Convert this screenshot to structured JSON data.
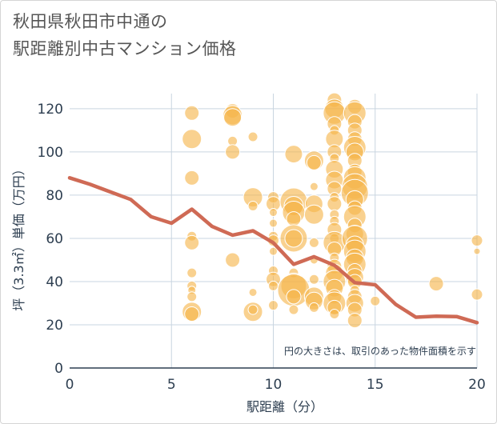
{
  "chart_data": {
    "type": "scatter",
    "title_lines": [
      "秋田県秋田市中通の",
      "駅距離別中古マンション価格"
    ],
    "xlabel": "駅距離（分）",
    "ylabel": "坪（3.3㎡）単価（万円）",
    "xlim": [
      0,
      20
    ],
    "ylim": [
      0,
      127
    ],
    "xticks": [
      0,
      5,
      10,
      15,
      20
    ],
    "yticks": [
      0,
      20,
      40,
      60,
      80,
      100,
      120
    ],
    "grid": true,
    "annotation": "円の大きさは、取引のあった物件面積を示す",
    "colors": {
      "bubble": "#f5b54b",
      "line": "#cf6a55",
      "grid": "#c9d5e0",
      "axis": "#2d3e50"
    },
    "points": [
      {
        "x": 6,
        "y": 118,
        "s": 9
      },
      {
        "x": 6,
        "y": 106,
        "s": 12
      },
      {
        "x": 6,
        "y": 88,
        "s": 9
      },
      {
        "x": 6,
        "y": 61,
        "s": 6
      },
      {
        "x": 6,
        "y": 58,
        "s": 9
      },
      {
        "x": 6,
        "y": 44,
        "s": 6
      },
      {
        "x": 6,
        "y": 38,
        "s": 6
      },
      {
        "x": 6,
        "y": 36,
        "s": 5
      },
      {
        "x": 6,
        "y": 33,
        "s": 6
      },
      {
        "x": 6,
        "y": 26,
        "s": 12
      },
      {
        "x": 6,
        "y": 25,
        "s": 9
      },
      {
        "x": 8,
        "y": 119,
        "s": 9
      },
      {
        "x": 8,
        "y": 117,
        "s": 12
      },
      {
        "x": 8,
        "y": 116,
        "s": 11
      },
      {
        "x": 8,
        "y": 105,
        "s": 6
      },
      {
        "x": 8,
        "y": 100,
        "s": 9
      },
      {
        "x": 8,
        "y": 50,
        "s": 9
      },
      {
        "x": 9,
        "y": 107,
        "s": 6
      },
      {
        "x": 9,
        "y": 79,
        "s": 12
      },
      {
        "x": 9,
        "y": 75,
        "s": 6
      },
      {
        "x": 9,
        "y": 35,
        "s": 5
      },
      {
        "x": 9,
        "y": 26,
        "s": 12
      },
      {
        "x": 9,
        "y": 27,
        "s": 6
      },
      {
        "x": 10,
        "y": 79,
        "s": 7
      },
      {
        "x": 10,
        "y": 76,
        "s": 9
      },
      {
        "x": 10,
        "y": 72,
        "s": 5
      },
      {
        "x": 10,
        "y": 67,
        "s": 5
      },
      {
        "x": 10,
        "y": 61,
        "s": 6
      },
      {
        "x": 10,
        "y": 59,
        "s": 7
      },
      {
        "x": 10,
        "y": 54,
        "s": 5
      },
      {
        "x": 10,
        "y": 45,
        "s": 6
      },
      {
        "x": 10,
        "y": 41,
        "s": 9
      },
      {
        "x": 10,
        "y": 38,
        "s": 6
      },
      {
        "x": 10,
        "y": 29,
        "s": 6
      },
      {
        "x": 11,
        "y": 99,
        "s": 11
      },
      {
        "x": 11,
        "y": 77,
        "s": 17
      },
      {
        "x": 11,
        "y": 75,
        "s": 12
      },
      {
        "x": 11,
        "y": 72,
        "s": 14
      },
      {
        "x": 11,
        "y": 69,
        "s": 9
      },
      {
        "x": 11,
        "y": 60,
        "s": 17
      },
      {
        "x": 11,
        "y": 60,
        "s": 11
      },
      {
        "x": 11,
        "y": 44,
        "s": 6
      },
      {
        "x": 11,
        "y": 38,
        "s": 16
      },
      {
        "x": 11,
        "y": 36,
        "s": 20
      },
      {
        "x": 11,
        "y": 33,
        "s": 9
      },
      {
        "x": 11,
        "y": 27,
        "s": 6
      },
      {
        "x": 12,
        "y": 96,
        "s": 12
      },
      {
        "x": 12,
        "y": 95,
        "s": 9
      },
      {
        "x": 12,
        "y": 84,
        "s": 5
      },
      {
        "x": 12,
        "y": 76,
        "s": 11
      },
      {
        "x": 12,
        "y": 71,
        "s": 12
      },
      {
        "x": 12,
        "y": 58,
        "s": 6
      },
      {
        "x": 12,
        "y": 50,
        "s": 5
      },
      {
        "x": 12,
        "y": 41,
        "s": 6
      },
      {
        "x": 12,
        "y": 33,
        "s": 12
      },
      {
        "x": 12,
        "y": 31,
        "s": 11
      },
      {
        "x": 12,
        "y": 28,
        "s": 6
      },
      {
        "x": 13,
        "y": 124,
        "s": 9
      },
      {
        "x": 13,
        "y": 120,
        "s": 12
      },
      {
        "x": 13,
        "y": 118,
        "s": 14
      },
      {
        "x": 13,
        "y": 113,
        "s": 9
      },
      {
        "x": 13,
        "y": 110,
        "s": 6
      },
      {
        "x": 13,
        "y": 106,
        "s": 11
      },
      {
        "x": 13,
        "y": 100,
        "s": 9
      },
      {
        "x": 13,
        "y": 97,
        "s": 6
      },
      {
        "x": 13,
        "y": 92,
        "s": 11
      },
      {
        "x": 13,
        "y": 87,
        "s": 11
      },
      {
        "x": 13,
        "y": 83,
        "s": 9
      },
      {
        "x": 13,
        "y": 79,
        "s": 6
      },
      {
        "x": 13,
        "y": 76,
        "s": 9
      },
      {
        "x": 13,
        "y": 71,
        "s": 6
      },
      {
        "x": 13,
        "y": 68,
        "s": 6
      },
      {
        "x": 13,
        "y": 64,
        "s": 9
      },
      {
        "x": 13,
        "y": 60,
        "s": 6
      },
      {
        "x": 13,
        "y": 58,
        "s": 14
      },
      {
        "x": 13,
        "y": 55,
        "s": 9
      },
      {
        "x": 13,
        "y": 51,
        "s": 6
      },
      {
        "x": 13,
        "y": 47,
        "s": 9
      },
      {
        "x": 13,
        "y": 44,
        "s": 11
      },
      {
        "x": 13,
        "y": 40,
        "s": 14
      },
      {
        "x": 13,
        "y": 37,
        "s": 11
      },
      {
        "x": 13,
        "y": 33,
        "s": 9
      },
      {
        "x": 13,
        "y": 30,
        "s": 14
      },
      {
        "x": 13,
        "y": 28,
        "s": 9
      },
      {
        "x": 13,
        "y": 25,
        "s": 6
      },
      {
        "x": 14,
        "y": 121,
        "s": 9
      },
      {
        "x": 14,
        "y": 118,
        "s": 14
      },
      {
        "x": 14,
        "y": 114,
        "s": 9
      },
      {
        "x": 14,
        "y": 110,
        "s": 9
      },
      {
        "x": 14,
        "y": 106,
        "s": 9
      },
      {
        "x": 14,
        "y": 102,
        "s": 14
      },
      {
        "x": 14,
        "y": 100,
        "s": 11
      },
      {
        "x": 14,
        "y": 96,
        "s": 9
      },
      {
        "x": 14,
        "y": 91,
        "s": 9
      },
      {
        "x": 14,
        "y": 88,
        "s": 14
      },
      {
        "x": 14,
        "y": 84,
        "s": 16
      },
      {
        "x": 14,
        "y": 81,
        "s": 17
      },
      {
        "x": 14,
        "y": 78,
        "s": 11
      },
      {
        "x": 14,
        "y": 74,
        "s": 9
      },
      {
        "x": 14,
        "y": 70,
        "s": 14
      },
      {
        "x": 14,
        "y": 66,
        "s": 9
      },
      {
        "x": 14,
        "y": 62,
        "s": 11
      },
      {
        "x": 14,
        "y": 60,
        "s": 16
      },
      {
        "x": 14,
        "y": 57,
        "s": 11
      },
      {
        "x": 14,
        "y": 54,
        "s": 14
      },
      {
        "x": 14,
        "y": 51,
        "s": 11
      },
      {
        "x": 14,
        "y": 48,
        "s": 14
      },
      {
        "x": 14,
        "y": 45,
        "s": 9
      },
      {
        "x": 14,
        "y": 42,
        "s": 11
      },
      {
        "x": 14,
        "y": 40,
        "s": 9
      },
      {
        "x": 14,
        "y": 36,
        "s": 6
      },
      {
        "x": 14,
        "y": 33,
        "s": 9
      },
      {
        "x": 14,
        "y": 30,
        "s": 11
      },
      {
        "x": 14,
        "y": 27,
        "s": 9
      },
      {
        "x": 14,
        "y": 22,
        "s": 9
      },
      {
        "x": 15,
        "y": 31,
        "s": 6
      },
      {
        "x": 18,
        "y": 39,
        "s": 9
      },
      {
        "x": 20,
        "y": 59,
        "s": 7
      },
      {
        "x": 20,
        "y": 54,
        "s": 4
      },
      {
        "x": 20,
        "y": 34,
        "s": 7
      }
    ],
    "trend": {
      "x": [
        0,
        1,
        2,
        3,
        4,
        5,
        6,
        7,
        8,
        9,
        10,
        11,
        12,
        13,
        14,
        15,
        16,
        17,
        18,
        19,
        20
      ],
      "y": [
        88,
        85,
        81.5,
        78,
        70,
        67,
        73.5,
        65.5,
        61.5,
        63.5,
        58,
        48,
        51.5,
        47.5,
        39.5,
        38.5,
        29.5,
        23.5,
        24,
        23.8,
        21
      ]
    }
  }
}
